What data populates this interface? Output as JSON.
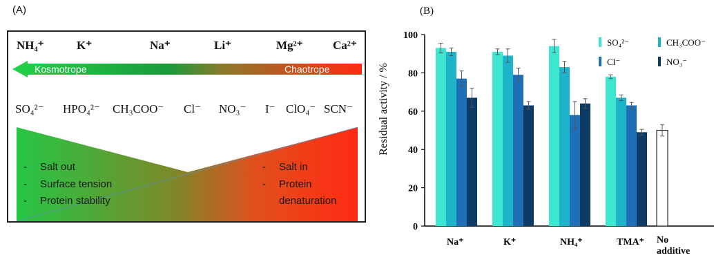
{
  "panel_a": {
    "label": "(A)",
    "cations": [
      "NH₄⁺",
      "K⁺",
      "Na⁺",
      "Li⁺",
      "Mg²⁺",
      "Ca²⁺"
    ],
    "arrow_left_label": "Kosmotrope",
    "arrow_right_label": "Chaotrope",
    "anions": [
      "SO₄²⁻",
      "HPO₄²⁻",
      "CH₃COO⁻",
      "Cl⁻",
      "NO₃⁻",
      "I⁻",
      "ClO₄⁻",
      "SCN⁻"
    ],
    "left_effects": [
      "Salt out",
      "Surface tension",
      "Protein stability"
    ],
    "right_effects": [
      "Salt in",
      "Protein",
      "denaturation"
    ],
    "bullet_dash": "-"
  },
  "chart_data": {
    "type": "bar",
    "label": "(B)",
    "ylabel": "Residual activity / %",
    "ylim": [
      0,
      100
    ],
    "yticks": [
      0,
      20,
      40,
      60,
      80,
      100
    ],
    "grid": false,
    "legend_position": "top-right",
    "categories": [
      "Na⁺",
      "K⁺",
      "NH₄⁺",
      "TMA⁺",
      "No additive"
    ],
    "series": [
      {
        "name": "SO₄²⁻",
        "color": "#3fe6cf",
        "values": [
          93,
          91,
          94,
          78,
          null
        ],
        "errors": [
          2.5,
          1.5,
          3.5,
          1,
          null
        ]
      },
      {
        "name": "CH₃COO⁻",
        "color": "#1db3c9",
        "values": [
          91,
          89,
          83,
          67,
          null
        ],
        "errors": [
          2,
          3.5,
          3,
          1.5,
          null
        ]
      },
      {
        "name": "Cl⁻",
        "color": "#1e6fb5",
        "values": [
          77,
          79,
          58,
          63,
          null
        ],
        "errors": [
          4,
          3.5,
          7,
          1.5,
          null
        ]
      },
      {
        "name": "NO₃⁻",
        "color": "#0d3b66",
        "values": [
          67,
          63,
          64,
          49,
          null
        ],
        "errors": [
          5,
          2,
          2.5,
          1.5,
          null
        ]
      },
      {
        "name": "No additive",
        "color": "#ffffff",
        "values": [
          null,
          null,
          null,
          null,
          50
        ],
        "errors": [
          null,
          null,
          null,
          null,
          3
        ]
      }
    ]
  },
  "colors": {
    "kosmotrope": "#1fbf3a",
    "chaotrope": "#ff3b1f"
  }
}
